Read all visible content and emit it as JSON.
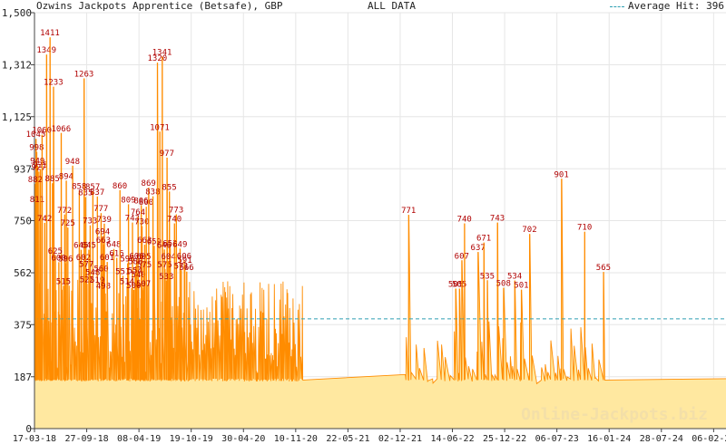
{
  "header": {
    "title": "Ozwins Jackpots Apprentice (Betsafe), GBP",
    "subtitle": "ALL DATA",
    "legend_label": "Average Hit: 396"
  },
  "watermark": "Online-Jackpots.biz",
  "colors": {
    "line": "#ff8c00",
    "fill": "#ffe8a0",
    "avg_line": "#2e9fb2",
    "label": "#b00000",
    "grid": "#e6e6e6",
    "axis": "#444444",
    "watermark": "#f3dfa8"
  },
  "chart_data": {
    "type": "line",
    "title": "Ozwins Jackpots Apprentice (Betsafe), GBP",
    "subtitle": "ALL DATA",
    "y_ticks": [
      0,
      187,
      375,
      562,
      750,
      937,
      1125,
      1312,
      1500
    ],
    "y_tick_labels": [
      "0",
      "187",
      "375",
      "562",
      "750",
      "937",
      "1,125",
      "1,312",
      "1,500"
    ],
    "ylim": [
      0,
      1500
    ],
    "x_tick_labels": [
      "17-03-18",
      "27-09-18",
      "08-04-19",
      "19-10-19",
      "30-04-20",
      "10-11-20",
      "22-05-21",
      "02-12-21",
      "14-06-22",
      "25-12-22",
      "06-07-23",
      "16-01-24",
      "28-07-24",
      "06-02-25"
    ],
    "grid": true,
    "average_hit": 396,
    "series": [
      {
        "style": "sawtooth-area",
        "baseline": 175,
        "segments": [
          {
            "start": "2018-03-17",
            "end": "2020-12-20"
          },
          {
            "start": "2022-01-12",
            "end": "2024-01-30"
          }
        ],
        "flat_baseline": [
          {
            "x": "2020-12-20",
            "y": 175
          },
          {
            "x": "2022-01-10",
            "y": 195
          },
          {
            "x": "2022-04-02",
            "y": 150
          },
          {
            "x": "2025-04-30",
            "y": 180
          }
        ],
        "labeled_peaks": [
          {
            "x": "2018-03-22",
            "y": 1045
          },
          {
            "x": "2018-03-25",
            "y": 998
          },
          {
            "x": "2018-03-28",
            "y": 949
          },
          {
            "x": "2018-04-02",
            "y": 927
          },
          {
            "x": "2018-04-08",
            "y": 935
          },
          {
            "x": "2018-03-20",
            "y": 882
          },
          {
            "x": "2018-03-27",
            "y": 811
          },
          {
            "x": "2018-04-14",
            "y": 1060
          },
          {
            "x": "2018-05-01",
            "y": 1349
          },
          {
            "x": "2018-05-14",
            "y": 1411
          },
          {
            "x": "2018-05-27",
            "y": 1233
          },
          {
            "x": "2018-06-25",
            "y": 1066
          },
          {
            "x": "2018-05-23",
            "y": 885
          },
          {
            "x": "2018-07-14",
            "y": 894
          },
          {
            "x": "2018-08-07",
            "y": 948
          },
          {
            "x": "2018-04-24",
            "y": 742
          },
          {
            "x": "2018-07-08",
            "y": 772
          },
          {
            "x": "2018-07-20",
            "y": 725
          },
          {
            "x": "2018-06-03",
            "y": 625
          },
          {
            "x": "2018-06-16",
            "y": 600
          },
          {
            "x": "2018-07-12",
            "y": 596
          },
          {
            "x": "2018-07-04",
            "y": 515
          },
          {
            "x": "2018-09-19",
            "y": 1263
          },
          {
            "x": "2018-09-01",
            "y": 858
          },
          {
            "x": "2018-09-25",
            "y": 835
          },
          {
            "x": "2018-10-12",
            "y": 733
          },
          {
            "x": "2018-10-22",
            "y": 857
          },
          {
            "x": "2018-11-08",
            "y": 837
          },
          {
            "x": "2018-11-22",
            "y": 777
          },
          {
            "x": "2018-12-04",
            "y": 739
          },
          {
            "x": "2018-11-28",
            "y": 694
          },
          {
            "x": "2018-12-01",
            "y": 663
          },
          {
            "x": "2018-09-08",
            "y": 645
          },
          {
            "x": "2018-09-17",
            "y": 602
          },
          {
            "x": "2018-10-07",
            "y": 645
          },
          {
            "x": "2018-09-28",
            "y": 577
          },
          {
            "x": "2018-09-30",
            "y": 522
          },
          {
            "x": "2018-10-22",
            "y": 548
          },
          {
            "x": "2018-11-08",
            "y": 519
          },
          {
            "x": "2018-11-23",
            "y": 560
          },
          {
            "x": "2018-12-01",
            "y": 498
          },
          {
            "x": "2018-12-15",
            "y": 601
          },
          {
            "x": "2019-01-09",
            "y": 648
          },
          {
            "x": "2019-01-20",
            "y": 616
          },
          {
            "x": "2019-02-01",
            "y": 860
          },
          {
            "x": "2019-03-05",
            "y": 809
          },
          {
            "x": "2019-03-20",
            "y": 743
          },
          {
            "x": "2019-03-02",
            "y": 596
          },
          {
            "x": "2019-02-12",
            "y": 551
          },
          {
            "x": "2019-02-28",
            "y": 514
          },
          {
            "x": "2019-04-22",
            "y": 806
          },
          {
            "x": "2019-04-10",
            "y": 764
          },
          {
            "x": "2019-04-25",
            "y": 730
          },
          {
            "x": "2019-04-05",
            "y": 606
          },
          {
            "x": "2019-04-01",
            "y": 586
          },
          {
            "x": "2019-03-30",
            "y": 554
          },
          {
            "x": "2019-04-12",
            "y": 540
          },
          {
            "x": "2019-03-25",
            "y": 500
          },
          {
            "x": "2019-05-11",
            "y": 800
          },
          {
            "x": "2019-05-20",
            "y": 869
          },
          {
            "x": "2019-06-05",
            "y": 838
          },
          {
            "x": "2019-05-05",
            "y": 663
          },
          {
            "x": "2019-05-02",
            "y": 605
          },
          {
            "x": "2019-05-04",
            "y": 575
          },
          {
            "x": "2019-05-01",
            "y": 507
          },
          {
            "x": "2019-06-10",
            "y": 659
          },
          {
            "x": "2019-06-22",
            "y": 1320
          },
          {
            "x": "2019-07-10",
            "y": 1341
          },
          {
            "x": "2019-07-01",
            "y": 1071
          },
          {
            "x": "2019-07-28",
            "y": 977
          },
          {
            "x": "2019-08-06",
            "y": 855
          },
          {
            "x": "2019-07-18",
            "y": 646
          },
          {
            "x": "2019-08-09",
            "y": 652
          },
          {
            "x": "2019-07-20",
            "y": 575
          },
          {
            "x": "2019-07-26",
            "y": 533
          },
          {
            "x": "2019-08-03",
            "y": 604
          },
          {
            "x": "2019-09-01",
            "y": 773
          },
          {
            "x": "2019-08-25",
            "y": 740
          },
          {
            "x": "2019-09-15",
            "y": 649
          },
          {
            "x": "2019-10-01",
            "y": 606
          },
          {
            "x": "2019-10-03",
            "y": 591
          },
          {
            "x": "2019-10-10",
            "y": 566
          },
          {
            "x": "2019-09-20",
            "y": 571
          },
          {
            "x": "2022-01-22",
            "y": 771
          },
          {
            "x": "2022-07-18",
            "y": 505
          },
          {
            "x": "2022-08-01",
            "y": 505
          },
          {
            "x": "2022-08-20",
            "y": 740
          },
          {
            "x": "2022-08-10",
            "y": 607
          },
          {
            "x": "2022-10-10",
            "y": 637
          },
          {
            "x": "2022-11-01",
            "y": 671
          },
          {
            "x": "2022-11-14",
            "y": 535
          },
          {
            "x": "2022-12-22",
            "y": 743
          },
          {
            "x": "2023-01-14",
            "y": 508
          },
          {
            "x": "2023-02-25",
            "y": 534
          },
          {
            "x": "2023-03-22",
            "y": 501
          },
          {
            "x": "2023-04-22",
            "y": 702
          },
          {
            "x": "2023-08-20",
            "y": 901
          },
          {
            "x": "2023-11-15",
            "y": 710
          },
          {
            "x": "2024-01-25",
            "y": 565
          }
        ]
      }
    ]
  }
}
